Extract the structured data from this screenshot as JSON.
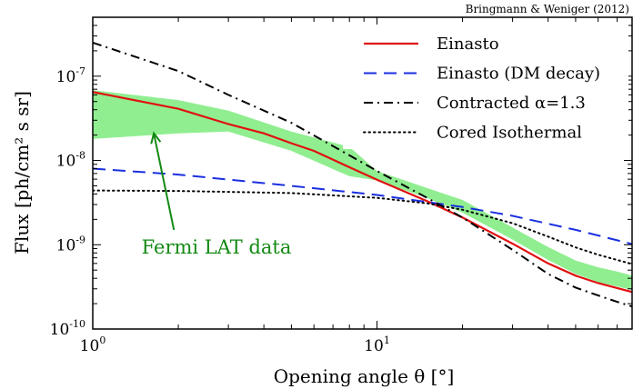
{
  "credit": "Bringmann & Weniger (2012)",
  "chart_data": {
    "type": "line",
    "xscale": "log",
    "yscale": "log",
    "xlim": [
      1,
      79
    ],
    "ylim": [
      1e-10,
      5e-07
    ],
    "xlabel": "Opening angle θ [°]",
    "ylabel": "Flux [ph/cm² s sr]",
    "x_ticks": [
      {
        "value": 1,
        "base": "10",
        "exp": "0"
      },
      {
        "value": 10,
        "base": "10",
        "exp": "1"
      }
    ],
    "y_ticks": [
      {
        "value": 1e-10,
        "base": "10",
        "exp": "-10"
      },
      {
        "value": 1e-09,
        "base": "10",
        "exp": "-9"
      },
      {
        "value": 1e-08,
        "base": "10",
        "exp": "-8"
      },
      {
        "value": 1e-07,
        "base": "10",
        "exp": "-7"
      }
    ],
    "legend_position": "top-right",
    "band": {
      "name": "Fermi LAT data",
      "color": "#90ee90",
      "x": [
        1,
        2,
        3,
        5,
        8,
        10,
        15,
        20,
        30,
        40,
        50,
        60,
        70,
        79
      ],
      "lower": [
        1.8e-08,
        2.1e-08,
        2.2e-08,
        1.3e-08,
        6.5e-09,
        5.8e-09,
        3.6e-09,
        2.4e-09,
        1.15e-09,
        6.6e-10,
        4.5e-10,
        3.6e-10,
        3.2e-10,
        2.9e-10
      ],
      "upper": [
        6.8e-08,
        5.2e-08,
        3.9e-08,
        2.2e-08,
        1.45e-08,
        7.5e-09,
        4.7e-09,
        3.4e-09,
        1.6e-09,
        9.4e-10,
        6.5e-10,
        5.4e-10,
        4.8e-10,
        4.3e-10
      ]
    },
    "annotation": {
      "text": "Fermi LAT data",
      "arrow_from": [
        1.93,
        1.5e-09
      ],
      "arrow_to": [
        1.64,
        2.1e-08
      ]
    },
    "series": [
      {
        "name": "Einasto",
        "color": "#e01010",
        "style": "solid",
        "x": [
          1,
          2,
          3,
          4,
          5,
          6,
          8,
          10,
          15,
          20,
          30,
          40,
          50,
          60,
          79
        ],
        "y": [
          6.5e-08,
          4.1e-08,
          2.7e-08,
          2.1e-08,
          1.6e-08,
          1.3e-08,
          8.3e-09,
          5.9e-09,
          3.3e-09,
          2.1e-09,
          1.03e-09,
          6e-10,
          4.3e-10,
          3.5e-10,
          2.75e-10
        ]
      },
      {
        "name": "Einasto (DM decay)",
        "color": "#1a2fe0",
        "style": "dashed",
        "x": [
          1,
          2,
          5,
          10,
          20,
          30,
          50,
          79
        ],
        "y": [
          8e-09,
          6.8e-09,
          5e-09,
          3.9e-09,
          2.8e-09,
          2.2e-09,
          1.5e-09,
          1.02e-09
        ]
      },
      {
        "name": "Contracted α=1.3",
        "color": "#000000",
        "style": "dashdot",
        "x": [
          1,
          2,
          3,
          5,
          8,
          10,
          15,
          20,
          30,
          40,
          50,
          60,
          70,
          79
        ],
        "y": [
          2.5e-07,
          1.15e-07,
          6e-08,
          2.8e-08,
          1.15e-08,
          7.5e-09,
          3.6e-09,
          2.1e-09,
          8.7e-10,
          4.5e-10,
          3.1e-10,
          2.5e-10,
          2.1e-10,
          1.85e-10
        ]
      },
      {
        "name": "Cored Isothermal",
        "color": "#000000",
        "style": "dotted",
        "x": [
          1,
          2,
          5,
          10,
          15,
          20,
          30,
          40,
          50,
          60,
          79
        ],
        "y": [
          4.4e-09,
          4.35e-09,
          4.1e-09,
          3.6e-09,
          3.1e-09,
          2.6e-09,
          1.8e-09,
          1.25e-09,
          9.3e-10,
          7.6e-10,
          5.9e-10
        ]
      }
    ]
  }
}
